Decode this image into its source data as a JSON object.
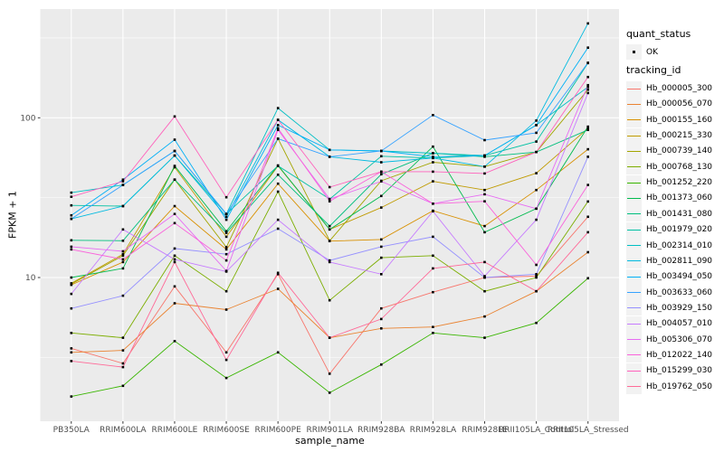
{
  "legend": {
    "quant_status_title": "quant_status",
    "quant_status_items": [
      {
        "label": "OK",
        "marker": "black-square"
      }
    ],
    "tracking_id_title": "tracking_id"
  },
  "chart_data": {
    "type": "line",
    "title": "",
    "xlabel": "sample_name",
    "ylabel": "FPKM + 1",
    "y_scale": "log10",
    "grid": true,
    "legend_position": "right",
    "point_marker": "black-square",
    "panel_background": "#EBEBEB",
    "gridline_color": "#FFFFFF",
    "tick_label_color": "#4D4D4D",
    "y_major_ticks": [
      10,
      100
    ],
    "y_minor_ticks": [
      3.162,
      31.623,
      316.228
    ],
    "ylim": [
      1.26,
      480
    ],
    "x_categories": [
      "PB350LA",
      "RRIM600LA",
      "RRIM600LE",
      "RRIM600SE",
      "RRIM600PE",
      "RRIM901LA",
      "RRIM928BA",
      "RRIM928LA",
      "RRIM928LE",
      "RRII105LA_Control",
      "RRII105LA_Stressed"
    ],
    "series": [
      {
        "name": "Hb_000005_300",
        "color": "#F8766D",
        "values": [
          3.6,
          2.9,
          8.8,
          3.4,
          10.5,
          2.5,
          6.4,
          8.1,
          10,
          10.2,
          24
        ]
      },
      {
        "name": "Hb_000056_070",
        "color": "#EA8331",
        "values": [
          3.4,
          3.5,
          6.9,
          6.3,
          8.5,
          4.2,
          4.8,
          4.9,
          5.7,
          8.2,
          14.4
        ]
      },
      {
        "name": "Hb_000155_160",
        "color": "#D89000",
        "values": [
          9,
          12.5,
          28,
          15,
          38.7,
          16.9,
          17.3,
          26.2,
          21,
          35.3,
          63.5
        ]
      },
      {
        "name": "Hb_000215_330",
        "color": "#C09B00",
        "values": [
          9.2,
          14,
          49,
          18,
          50,
          20,
          27.4,
          40,
          35.3,
          45,
          86
        ]
      },
      {
        "name": "Hb_000739_140",
        "color": "#A3A500",
        "values": [
          9.1,
          13.7,
          41,
          15.5,
          74,
          17,
          40.3,
          52.7,
          49.5,
          61,
          150
        ]
      },
      {
        "name": "Hb_000768_130",
        "color": "#7CAE00",
        "values": [
          4.5,
          4.2,
          13.7,
          8.2,
          34.5,
          7.2,
          13.3,
          13.7,
          8.2,
          10,
          29.9
        ]
      },
      {
        "name": "Hb_001252_220",
        "color": "#39B600",
        "values": [
          1.8,
          2.1,
          4,
          2.35,
          3.4,
          1.9,
          2.85,
          4.5,
          4.2,
          5.2,
          9.9
        ]
      },
      {
        "name": "Hb_001373_060",
        "color": "#00BB4E",
        "values": [
          10,
          11.4,
          50,
          19.5,
          50.3,
          20,
          32.4,
          66,
          19.2,
          27,
          88
        ]
      },
      {
        "name": "Hb_001431_080",
        "color": "#00BF7D",
        "values": [
          17.1,
          17,
          41,
          19,
          44,
          21,
          44.3,
          60,
          57,
          61,
          84
        ]
      },
      {
        "name": "Hb_001979_020",
        "color": "#00C1A3",
        "values": [
          28.3,
          28,
          58,
          25,
          50,
          31,
          57.5,
          56,
          58,
          71,
          220
        ]
      },
      {
        "name": "Hb_002314_010",
        "color": "#00BFC4",
        "values": [
          34,
          38,
          62,
          25,
          115,
          63,
          62,
          60,
          58,
          90,
          156
        ]
      },
      {
        "name": "Hb_002811_090",
        "color": "#00BAE0",
        "values": [
          23.3,
          28,
          58,
          24,
          97,
          57,
          52.7,
          56,
          49.5,
          96,
          390
        ]
      },
      {
        "name": "Hb_003494_050",
        "color": "#00B0F6",
        "values": [
          24.5,
          41,
          73,
          23,
          90,
          63,
          62,
          57,
          58,
          90,
          275
        ]
      },
      {
        "name": "Hb_003633_060",
        "color": "#35A2FF",
        "values": [
          23.3,
          38,
          62,
          25,
          74,
          57,
          62,
          104,
          72.5,
          80.5,
          221
        ]
      },
      {
        "name": "Hb_003929_150",
        "color": "#9590FF",
        "values": [
          6.4,
          7.7,
          15.2,
          14,
          20.2,
          12.8,
          15.6,
          18,
          10,
          10.5,
          57
        ]
      },
      {
        "name": "Hb_004057_010",
        "color": "#C77CFF",
        "values": [
          7.9,
          20,
          13,
          10.9,
          23,
          12.5,
          10.5,
          26,
          10.2,
          23,
          143
        ]
      },
      {
        "name": "Hb_005306_070",
        "color": "#E76BF3",
        "values": [
          15.6,
          14.6,
          25,
          11,
          84,
          31,
          40,
          29,
          33.2,
          27,
          160
        ]
      },
      {
        "name": "Hb_012022_140",
        "color": "#FA62DB",
        "values": [
          15,
          13,
          21.9,
          12.8,
          86,
          30,
          46,
          29,
          30,
          12,
          38
        ]
      },
      {
        "name": "Hb_015299_030",
        "color": "#FF62BC",
        "values": [
          32,
          40,
          102,
          31.8,
          97,
          36.8,
          46,
          46,
          44.8,
          61,
          180
        ]
      },
      {
        "name": "Hb_019762_050",
        "color": "#FF6A98",
        "values": [
          3,
          2.75,
          12.5,
          3.05,
          10.7,
          4.2,
          5.5,
          11.4,
          12.5,
          8.2,
          19.2
        ]
      }
    ]
  }
}
